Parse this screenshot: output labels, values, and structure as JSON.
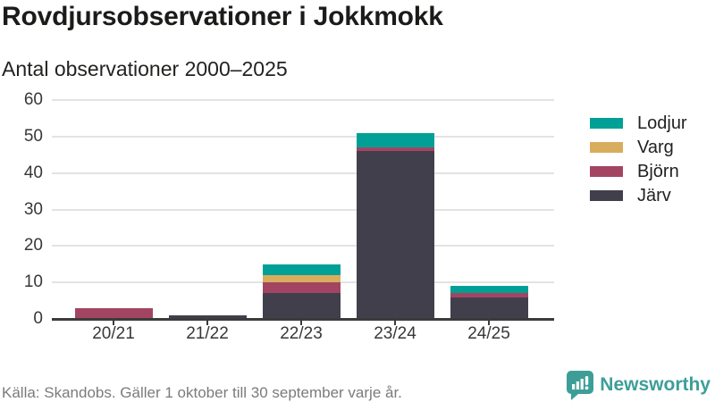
{
  "header": {
    "title": "Rovdjursobservationer i Jokkmokk",
    "subtitle": "Antal observationer 2000–2025"
  },
  "chart_data": {
    "type": "bar",
    "stacked": true,
    "title": "Rovdjursobservationer i Jokkmokk",
    "subtitle": "Antal observationer 2000–2025",
    "categories": [
      "20/21",
      "21/22",
      "22/23",
      "23/24",
      "24/25"
    ],
    "series": [
      {
        "name": "Järv",
        "color": "#423f4d",
        "values": [
          0,
          1,
          7,
          46,
          6
        ]
      },
      {
        "name": "Björn",
        "color": "#a34562",
        "values": [
          3,
          0,
          3,
          1,
          1
        ]
      },
      {
        "name": "Varg",
        "color": "#d9ad5e",
        "values": [
          0,
          0,
          2,
          0,
          0
        ]
      },
      {
        "name": "Lodjur",
        "color": "#00a096",
        "values": [
          0,
          0,
          3,
          4,
          2
        ]
      }
    ],
    "totals": [
      3,
      1,
      15,
      51,
      9
    ],
    "legend_order": [
      "Lodjur",
      "Varg",
      "Björn",
      "Järv"
    ],
    "legend_position": "right",
    "ylim": [
      0,
      60
    ],
    "yticks": [
      0,
      10,
      20,
      30,
      40,
      50,
      60
    ],
    "grid": "horizontal"
  },
  "footer": {
    "source": "Källa: Skandobs. Gäller 1 oktober till 30 september varje år.",
    "logo_text": "Newsworthy"
  },
  "icons": {
    "logo_icon": "newsworthy-speech-bubble-barchart-icon"
  },
  "colors": {
    "axis": "#3b3b3b",
    "grid": "#e3e3e3",
    "text": "#383838",
    "title": "#1b1b19",
    "muted": "#7b7b7b",
    "logo": "#3d9e98",
    "background": "#ffffff"
  }
}
